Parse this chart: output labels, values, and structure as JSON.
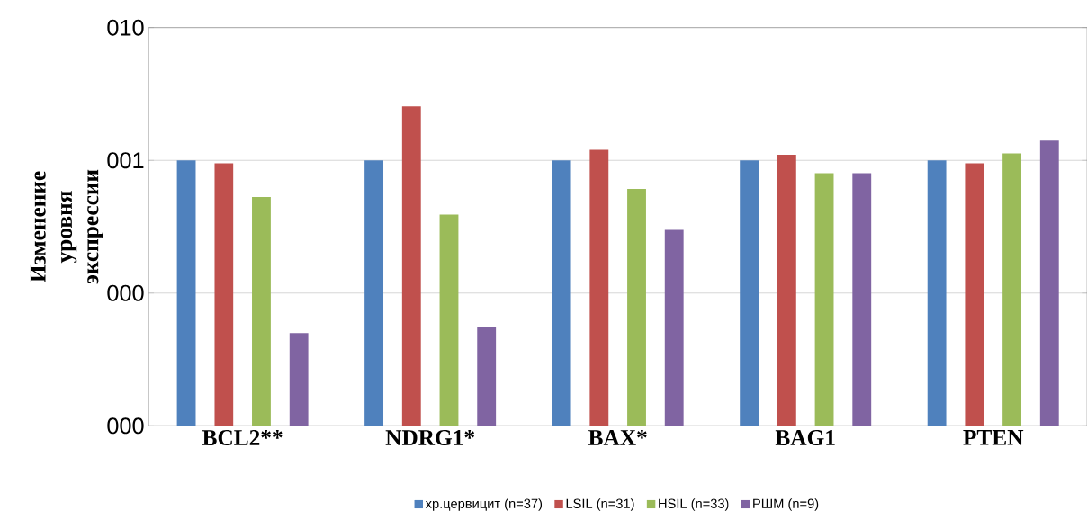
{
  "chart_data": {
    "type": "bar",
    "ylabel": "Изменение уровня экспрессии",
    "log": "y",
    "grid": "y",
    "legend": "bottom",
    "categories": [
      "BCL2**",
      "NDRG1*",
      "BAX*",
      "BAG1",
      "PTEN"
    ],
    "ylim": [
      0.01,
      10
    ],
    "yticks": [
      {
        "value": 0.01,
        "label": "000"
      },
      {
        "value": 0.1,
        "label": "000"
      },
      {
        "value": 1,
        "label": "001"
      },
      {
        "value": 10,
        "label": "010"
      }
    ],
    "series": [
      {
        "name": "хр.цервицит (n=37)",
        "color": "#4f81bd",
        "values": [
          1,
          1,
          1,
          1,
          1
        ]
      },
      {
        "name": "LSIL (n=31)",
        "color": "#c0504d",
        "values": [
          0.95,
          2.55,
          1.2,
          1.1,
          0.95
        ]
      },
      {
        "name": "HSIL (n=33)",
        "color": "#9bbb59",
        "values": [
          0.53,
          0.39,
          0.61,
          0.8,
          1.13
        ]
      },
      {
        "name": "РШМ (n=9)",
        "color": "#8064a2",
        "values": [
          0.05,
          0.055,
          0.3,
          0.8,
          1.41
        ]
      }
    ]
  }
}
